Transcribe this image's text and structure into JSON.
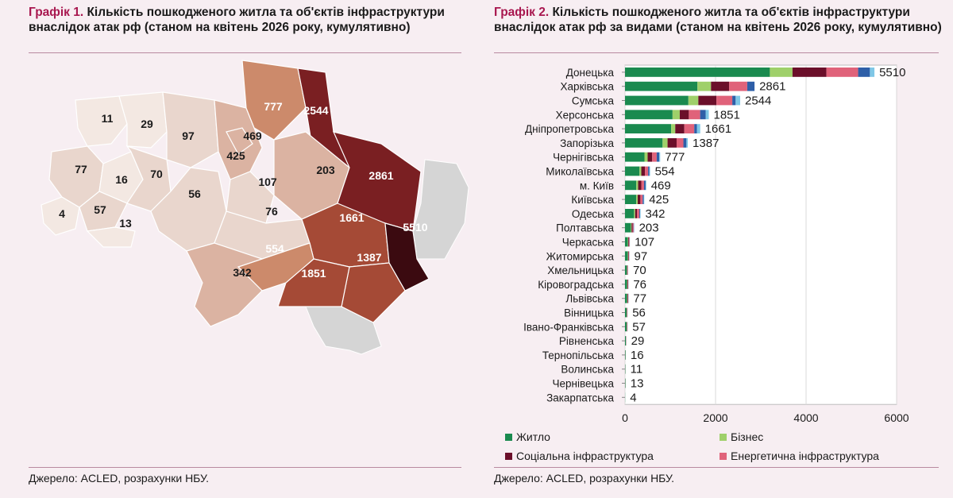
{
  "left": {
    "title_label": "Графік 1.",
    "title_text": " Кількість пошкодженого житла та об'єктів інфраструктури внаслідок атак рф (станом на квітень 2026 року, кумулятивно)",
    "source": "Джерело: ACLED, розрахунки НБУ."
  },
  "right": {
    "title_label": "Графік 2.",
    "title_text": " Кількість пошкодженого житла та об'єктів інфраструктури внаслідок атак рф за видами (станом на квітень 2026 року, кумулятивно)",
    "source": "Джерело: ACLED, розрахунки НБУ."
  },
  "chart_data": [
    {
      "type": "choropleth",
      "regions": [
        {
          "region": "Закарпатська",
          "value": 4
        },
        {
          "region": "Волинська",
          "value": 11
        },
        {
          "region": "Рівненська",
          "value": 29
        },
        {
          "region": "Житомирська",
          "value": 97
        },
        {
          "region": "Львівська",
          "value": 77
        },
        {
          "region": "Тернопільська",
          "value": 16
        },
        {
          "region": "Хмельницька",
          "value": 70
        },
        {
          "region": "Івано-Франківська",
          "value": 57
        },
        {
          "region": "Чернівецька",
          "value": 13
        },
        {
          "region": "Вінницька",
          "value": 56
        },
        {
          "region": "Київська",
          "value": 425
        },
        {
          "region": "м. Київ",
          "value": 469
        },
        {
          "region": "Чернігівська",
          "value": 777
        },
        {
          "region": "Сумська",
          "value": 2544
        },
        {
          "region": "Полтавська",
          "value": 203
        },
        {
          "region": "Черкаська",
          "value": 107
        },
        {
          "region": "Кіровоградська",
          "value": 76
        },
        {
          "region": "Харківська",
          "value": 2861
        },
        {
          "region": "Дніпропетровська",
          "value": 1661
        },
        {
          "region": "Донецька",
          "value": 5510
        },
        {
          "region": "Запорізька",
          "value": 1387
        },
        {
          "region": "Херсонська",
          "value": 1851
        },
        {
          "region": "Миколаївська",
          "value": 554
        },
        {
          "region": "Одеська",
          "value": 342
        }
      ]
    },
    {
      "type": "bar",
      "orientation": "horizontal",
      "stacked": true,
      "categories": [
        "Донецька",
        "Харківська",
        "Сумська",
        "Херсонська",
        "Дніпропетровська",
        "Запорізька",
        "Чернігівська",
        "Миколаївська",
        "м. Київ",
        "Київська",
        "Одеська",
        "Полтавська",
        "Черкаська",
        "Житомирська",
        "Хмельницька",
        "Кіровоградська",
        "Львівська",
        "Вінницька",
        "Івано-Франківська",
        "Рівненська",
        "Тернопільська",
        "Волинська",
        "Чернівецька",
        "Закарпатська"
      ],
      "totals": [
        5510,
        2861,
        2544,
        1851,
        1661,
        1387,
        777,
        554,
        469,
        425,
        342,
        203,
        107,
        97,
        70,
        76,
        77,
        56,
        57,
        29,
        16,
        11,
        13,
        4
      ],
      "series": [
        {
          "name": "Житло",
          "color": "#1a8a4f",
          "values": [
            3200,
            1600,
            1400,
            1050,
            1020,
            830,
            430,
            320,
            250,
            250,
            200,
            130,
            60,
            60,
            40,
            45,
            45,
            35,
            35,
            18,
            10,
            7,
            8,
            2
          ]
        },
        {
          "name": "Бізнес",
          "color": "#9fd06a",
          "values": [
            500,
            300,
            220,
            160,
            90,
            110,
            70,
            40,
            40,
            30,
            25,
            15,
            10,
            8,
            6,
            6,
            6,
            5,
            5,
            3,
            2,
            1,
            1,
            1
          ]
        },
        {
          "name": "Соціальна інфраструктура",
          "color": "#6b0f2a",
          "values": [
            750,
            400,
            400,
            200,
            200,
            200,
            100,
            80,
            70,
            60,
            40,
            25,
            15,
            12,
            10,
            10,
            10,
            7,
            7,
            3,
            2,
            1,
            2,
            0
          ]
        },
        {
          "name": "Енергетична інфраструктура",
          "color": "#e0627a",
          "values": [
            700,
            400,
            350,
            250,
            220,
            150,
            100,
            70,
            60,
            50,
            50,
            20,
            15,
            12,
            10,
            10,
            10,
            6,
            6,
            3,
            1,
            1,
            1,
            0
          ]
        },
        {
          "name": "",
          "color": "#2e5fa8",
          "values": [
            260,
            161,
            74,
            121,
            61,
            67,
            57,
            30,
            35,
            25,
            17,
            8,
            4,
            3,
            2,
            3,
            4,
            2,
            2,
            1,
            0,
            0,
            0,
            0
          ]
        },
        {
          "name": "",
          "color": "#7fc7e6",
          "values": [
            100,
            0,
            100,
            70,
            70,
            30,
            20,
            14,
            14,
            10,
            10,
            5,
            3,
            2,
            2,
            2,
            2,
            1,
            2,
            1,
            1,
            1,
            1,
            1
          ]
        }
      ],
      "xlim": [
        0,
        6000
      ],
      "xticks": [
        0,
        2000,
        4000,
        6000
      ],
      "grid": true,
      "legend_placement": "bottom"
    }
  ]
}
